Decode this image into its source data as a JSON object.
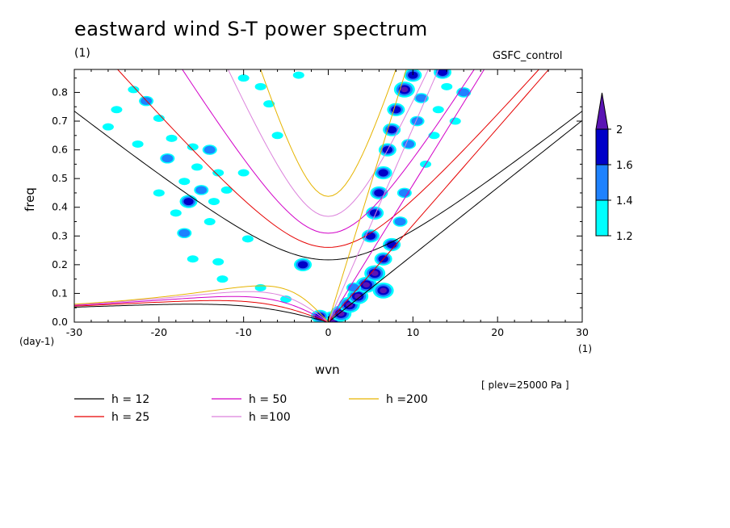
{
  "chart_data": {
    "type": "contour",
    "title": "eastward wind S-T power spectrum",
    "title_units": "(1)",
    "model": "GSFC_control",
    "xlabel": "wvn",
    "ylabel": "freq",
    "xunit": "(1)",
    "yunit": "(day-1)",
    "xlim": [
      -30,
      30
    ],
    "ylim": [
      0,
      0.88
    ],
    "xticks": [
      -30,
      -20,
      -10,
      0,
      10,
      20,
      30
    ],
    "yticks": [
      0.0,
      0.1,
      0.2,
      0.3,
      0.4,
      0.5,
      0.6,
      0.7,
      0.8
    ],
    "ytick_labels": [
      "0.0",
      "0.1",
      "0.2",
      "0.3",
      "0.4",
      "0.5",
      "0.6",
      "0.7",
      "0.8"
    ],
    "plev_note": "[ plev=25000 Pa ]",
    "colorbar": {
      "levels": [
        "1.2",
        "1.4",
        "1.6",
        "2"
      ],
      "colors": [
        "#00ffff",
        "#1e82ff",
        "#0000c8",
        "#5a14b4"
      ]
    },
    "dispersion_curves": [
      {
        "name": "h = 12",
        "h": 12,
        "color": "#000000"
      },
      {
        "name": "h = 25",
        "h": 25,
        "color": "#e60000"
      },
      {
        "name": "h = 50",
        "h": 50,
        "color": "#d200c8"
      },
      {
        "name": "h =100",
        "h": 100,
        "color": "#dc82dc"
      },
      {
        "name": "h =200",
        "h": 200,
        "color": "#e6b400"
      }
    ],
    "blobs": [
      {
        "k": -23,
        "f": 0.81,
        "lv": 0
      },
      {
        "k": -21.5,
        "f": 0.77,
        "lv": 1
      },
      {
        "k": -25,
        "f": 0.74,
        "lv": 0
      },
      {
        "k": -20,
        "f": 0.71,
        "lv": 0
      },
      {
        "k": -26,
        "f": 0.68,
        "lv": 0
      },
      {
        "k": -18.5,
        "f": 0.64,
        "lv": 0
      },
      {
        "k": -16,
        "f": 0.61,
        "lv": 0
      },
      {
        "k": -19,
        "f": 0.57,
        "lv": 1
      },
      {
        "k": -22.5,
        "f": 0.62,
        "lv": 0
      },
      {
        "k": -14,
        "f": 0.6,
        "lv": 1
      },
      {
        "k": -15.5,
        "f": 0.54,
        "lv": 0
      },
      {
        "k": -17,
        "f": 0.49,
        "lv": 0
      },
      {
        "k": -13,
        "f": 0.52,
        "lv": 0
      },
      {
        "k": -15,
        "f": 0.46,
        "lv": 1
      },
      {
        "k": -16.5,
        "f": 0.42,
        "lv": 2
      },
      {
        "k": -18,
        "f": 0.38,
        "lv": 0
      },
      {
        "k": -14,
        "f": 0.35,
        "lv": 0
      },
      {
        "k": -17,
        "f": 0.31,
        "lv": 1
      },
      {
        "k": -13.5,
        "f": 0.42,
        "lv": 0
      },
      {
        "k": -12,
        "f": 0.46,
        "lv": 0
      },
      {
        "k": -20,
        "f": 0.45,
        "lv": 0
      },
      {
        "k": -9.5,
        "f": 0.29,
        "lv": 0
      },
      {
        "k": -13,
        "f": 0.21,
        "lv": 0
      },
      {
        "k": -16,
        "f": 0.22,
        "lv": 0
      },
      {
        "k": -3,
        "f": 0.2,
        "lv": 2
      },
      {
        "k": -8,
        "f": 0.82,
        "lv": 0
      },
      {
        "k": -7,
        "f": 0.76,
        "lv": 0
      },
      {
        "k": -10,
        "f": 0.85,
        "lv": 0
      },
      {
        "k": -3.5,
        "f": 0.86,
        "lv": 0
      },
      {
        "k": -6,
        "f": 0.65,
        "lv": 0
      },
      {
        "k": -10,
        "f": 0.52,
        "lv": 0
      },
      {
        "k": -8,
        "f": 0.12,
        "lv": 0
      },
      {
        "k": -12.5,
        "f": 0.15,
        "lv": 0
      },
      {
        "k": -5,
        "f": 0.08,
        "lv": 0
      },
      {
        "k": 0.5,
        "f": 0.01,
        "lv": 3
      },
      {
        "k": -1,
        "f": 0.02,
        "lv": 2
      },
      {
        "k": 1.5,
        "f": 0.03,
        "lv": 3
      },
      {
        "k": 2.5,
        "f": 0.06,
        "lv": 3
      },
      {
        "k": 3.5,
        "f": 0.09,
        "lv": 3
      },
      {
        "k": 4.5,
        "f": 0.13,
        "lv": 3
      },
      {
        "k": 5.5,
        "f": 0.17,
        "lv": 3
      },
      {
        "k": 6.5,
        "f": 0.22,
        "lv": 2
      },
      {
        "k": 7.5,
        "f": 0.27,
        "lv": 2
      },
      {
        "k": 5,
        "f": 0.3,
        "lv": 2
      },
      {
        "k": 5.5,
        "f": 0.38,
        "lv": 2
      },
      {
        "k": 6,
        "f": 0.45,
        "lv": 2
      },
      {
        "k": 6.5,
        "f": 0.52,
        "lv": 2
      },
      {
        "k": 7,
        "f": 0.6,
        "lv": 2
      },
      {
        "k": 7.5,
        "f": 0.67,
        "lv": 2
      },
      {
        "k": 8,
        "f": 0.74,
        "lv": 2
      },
      {
        "k": 9,
        "f": 0.81,
        "lv": 3
      },
      {
        "k": 10,
        "f": 0.86,
        "lv": 2
      },
      {
        "k": 9.5,
        "f": 0.62,
        "lv": 1
      },
      {
        "k": 10.5,
        "f": 0.7,
        "lv": 1
      },
      {
        "k": 11,
        "f": 0.78,
        "lv": 1
      },
      {
        "k": 8.5,
        "f": 0.35,
        "lv": 1
      },
      {
        "k": 9,
        "f": 0.45,
        "lv": 1
      },
      {
        "k": 6.5,
        "f": 0.11,
        "lv": 3
      },
      {
        "k": 3,
        "f": 0.12,
        "lv": 1
      },
      {
        "k": 13,
        "f": 0.74,
        "lv": 0
      },
      {
        "k": 14,
        "f": 0.82,
        "lv": 0
      },
      {
        "k": 12.5,
        "f": 0.65,
        "lv": 0
      },
      {
        "k": 11.5,
        "f": 0.55,
        "lv": 0
      },
      {
        "k": 16,
        "f": 0.8,
        "lv": 1
      },
      {
        "k": 15,
        "f": 0.7,
        "lv": 0
      },
      {
        "k": 13.5,
        "f": 0.87,
        "lv": 2
      }
    ]
  }
}
